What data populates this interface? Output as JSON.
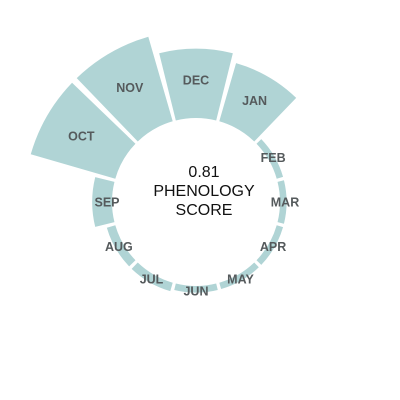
{
  "chart_data": {
    "type": "radial-bar",
    "categories": [
      "JAN",
      "FEB",
      "MAR",
      "APR",
      "MAY",
      "JUN",
      "JUL",
      "AUG",
      "SEP",
      "OCT",
      "NOV",
      "DEC"
    ],
    "values": [
      0.55,
      0.06,
      0.06,
      0.06,
      0.06,
      0.06,
      0.08,
      0.08,
      0.18,
      0.8,
      0.8,
      0.63
    ],
    "center_value": "0.81",
    "center_label_line1": "PHENOLOGY",
    "center_label_line2": "SCORE",
    "bar_color": "#b0d4d5",
    "label_color": "#555a5c"
  }
}
